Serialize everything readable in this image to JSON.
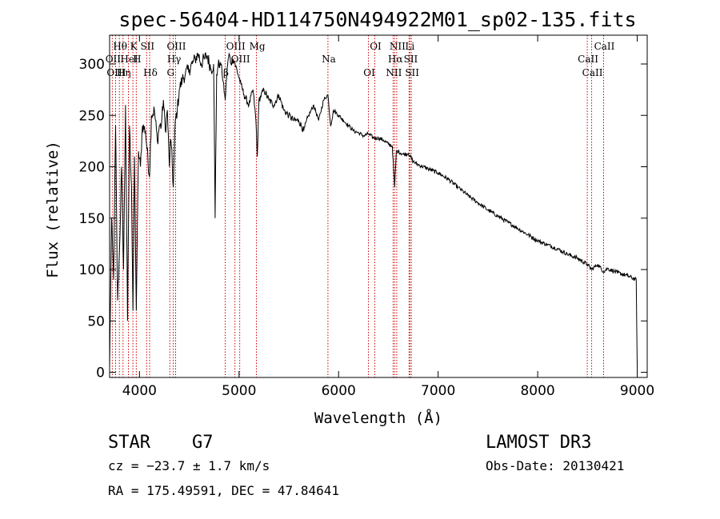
{
  "chart_data": {
    "type": "line",
    "title": "spec-56404-HD114750N494922M01_sp02-135.fits",
    "xlabel": "Wavelength (Å)",
    "ylabel": "Flux (relative)",
    "xlim": [
      3700,
      9100
    ],
    "ylim": [
      -5,
      328
    ],
    "xticks": [
      4000,
      5000,
      6000,
      7000,
      8000,
      9000
    ],
    "yticks": [
      0,
      50,
      100,
      150,
      200,
      250,
      300
    ],
    "series": [
      {
        "name": "flux",
        "x": [
          3700,
          3720,
          3740,
          3760,
          3780,
          3800,
          3820,
          3840,
          3860,
          3880,
          3900,
          3920,
          3935,
          3950,
          3968,
          3990,
          4010,
          4030,
          4060,
          4101,
          4120,
          4150,
          4180,
          4200,
          4220,
          4240,
          4260,
          4280,
          4300,
          4310,
          4320,
          4340,
          4360,
          4380,
          4400,
          4430,
          4460,
          4500,
          4530,
          4560,
          4590,
          4620,
          4650,
          4680,
          4720,
          4745,
          4760,
          4775,
          4790,
          4820,
          4861,
          4880,
          4900,
          4920,
          4940,
          4960,
          4990,
          5020,
          5050,
          5100,
          5140,
          5170,
          5183,
          5200,
          5250,
          5300,
          5350,
          5400,
          5450,
          5500,
          5550,
          5600,
          5650,
          5700,
          5750,
          5800,
          5850,
          5893,
          5920,
          5950,
          6000,
          6050,
          6100,
          6150,
          6200,
          6250,
          6300,
          6350,
          6400,
          6450,
          6500,
          6540,
          6563,
          6580,
          6600,
          6650,
          6700,
          6750,
          6800,
          6900,
          7000,
          7100,
          7200,
          7300,
          7400,
          7500,
          7600,
          7700,
          7800,
          7900,
          8000,
          8100,
          8200,
          8300,
          8400,
          8498,
          8542,
          8600,
          8662,
          8700,
          8800,
          8900,
          8990,
          9000
        ],
        "values": [
          5,
          150,
          90,
          240,
          70,
          120,
          200,
          100,
          260,
          50,
          240,
          180,
          60,
          210,
          60,
          215,
          200,
          240,
          235,
          190,
          250,
          255,
          225,
          240,
          240,
          265,
          235,
          255,
          200,
          225,
          220,
          180,
          245,
          255,
          275,
          285,
          290,
          295,
          300,
          305,
          310,
          300,
          305,
          308,
          295,
          300,
          150,
          290,
          298,
          300,
          265,
          295,
          310,
          300,
          305,
          300,
          290,
          280,
          270,
          260,
          275,
          245,
          210,
          265,
          275,
          265,
          260,
          270,
          255,
          250,
          245,
          245,
          235,
          250,
          260,
          245,
          265,
          270,
          240,
          255,
          250,
          245,
          240,
          235,
          233,
          230,
          232,
          228,
          228,
          226,
          222,
          220,
          180,
          215,
          215,
          212,
          213,
          205,
          202,
          198,
          194,
          188,
          180,
          172,
          165,
          158,
          152,
          146,
          140,
          134,
          128,
          124,
          120,
          115,
          111,
          105,
          100,
          105,
          98,
          101,
          97,
          94,
          90,
          0
        ]
      }
    ],
    "spectral_lines": [
      {
        "name": "Hθ",
        "wavelength": 3798
      },
      {
        "name": "OII",
        "wavelength": 3727
      },
      {
        "name": "OIII",
        "wavelength": 3760
      },
      {
        "name": "K",
        "wavelength": 3934
      },
      {
        "name": "HeI",
        "wavelength": 3889
      },
      {
        "name": "Hη",
        "wavelength": 3835
      },
      {
        "name": "SII",
        "wavelength": 4072
      },
      {
        "name": "H",
        "wavelength": 3968
      },
      {
        "name": "Hδ",
        "wavelength": 4102
      },
      {
        "name": "OIII",
        "wavelength": 4363
      },
      {
        "name": "Hγ",
        "wavelength": 4340
      },
      {
        "name": "G",
        "wavelength": 4305
      },
      {
        "name": "OIII",
        "wavelength": 4959
      },
      {
        "name": "OIII",
        "wavelength": 5007
      },
      {
        "name": "β",
        "wavelength": 4861
      },
      {
        "name": "Mg",
        "wavelength": 5175
      },
      {
        "name": "Na",
        "wavelength": 5893
      },
      {
        "name": "OI",
        "wavelength": 6300
      },
      {
        "name": "OI",
        "wavelength": 6364
      },
      {
        "name": "Hα",
        "wavelength": 6563
      },
      {
        "name": "NII",
        "wavelength": 6548
      },
      {
        "name": "NII",
        "wavelength": 6584
      },
      {
        "name": "SII",
        "wavelength": 6717
      },
      {
        "name": "SII",
        "wavelength": 6731
      },
      {
        "name": "Li",
        "wavelength": 6708
      },
      {
        "name": "CaII",
        "wavelength": 8498
      },
      {
        "name": "CaII",
        "wavelength": 8542
      },
      {
        "name": "CaII",
        "wavelength": 8662
      }
    ],
    "line_color": "#cc0000"
  },
  "info": {
    "object_type": "STAR",
    "subclass": "G7",
    "survey": "LAMOST DR3",
    "redshift": "cz = −23.7 ± 1.7 km/s",
    "obs_date": "Obs-Date: 20130421",
    "coords": "RA = 175.49591, DEC =  47.84641"
  }
}
